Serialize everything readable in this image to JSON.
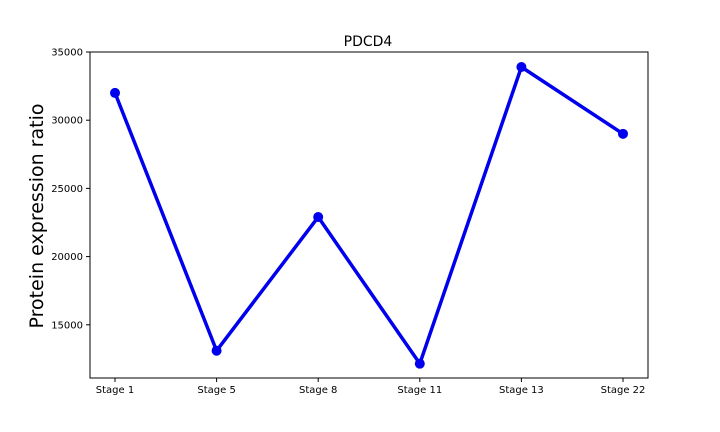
{
  "chart_data": {
    "type": "line",
    "title": "PDCD4",
    "xlabel": "",
    "ylabel": "Protein expression ratio",
    "categories": [
      "Stage 1",
      "Stage 5",
      "Stage 8",
      "Stage 11",
      "Stage 13",
      "Stage 22"
    ],
    "series": [
      {
        "values": [
          32000,
          13100,
          22900,
          12150,
          33900,
          29000
        ]
      }
    ],
    "ylim": [
      11100,
      35000
    ],
    "yticks": [
      15000,
      20000,
      25000,
      30000,
      35000
    ],
    "grid": false,
    "legend": "none",
    "colors": {
      "line": "#0000ee",
      "marker": "#0000ee",
      "axis": "#000000"
    }
  }
}
